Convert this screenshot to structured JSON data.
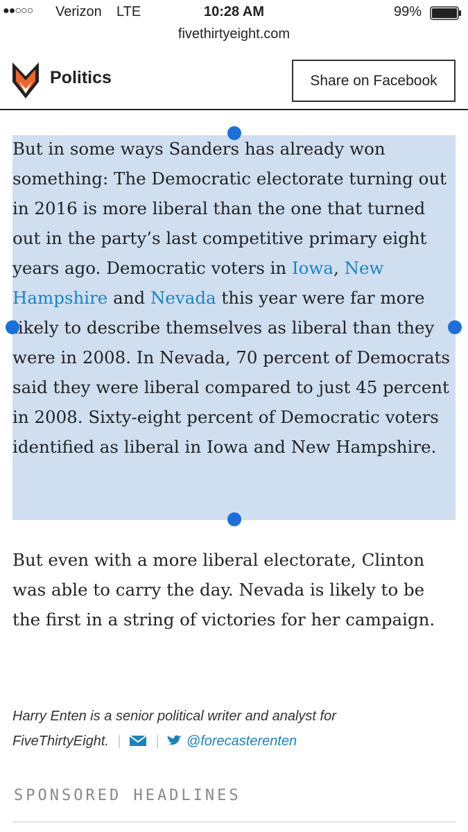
{
  "status_bar": {
    "carrier": "Verizon",
    "network": "LTE",
    "time": "10:28 AM",
    "battery": "99%"
  },
  "url": "fivethirtyeight.com",
  "header": {
    "section": "Politics",
    "share_button": "Share on Facebook"
  },
  "article": {
    "paragraphs": [
      {
        "parts": [
          {
            "text": "But in some ways Sanders has already won something: The Democratic electorate turning out in 2016 is more liberal than the one that turned out in the party’s last competitive primary eight years ago. Democratic voters in "
          },
          {
            "link": "Iowa"
          },
          {
            "text": ", "
          },
          {
            "link": "New Hampshire"
          },
          {
            "text": " and "
          },
          {
            "link": "Nevada"
          },
          {
            "text": " this year were far more likely to describe themselves as liberal than they were in 2008. In Nevada, 70 percent of Democrats said they were liberal compared to just 45 percent in 2008. Sixty-eight percent of Democratic voters identified as liberal in Iowa and New Hampshire."
          }
        ]
      },
      {
        "parts": [
          {
            "text": "But even with a more liberal electorate, Clinton was able to carry the day. Nevada is likely to be the first in a string of victories for her campaign."
          }
        ]
      }
    ]
  },
  "byline": {
    "bio": "Harry Enten is a senior political writer and analyst for FiveThirtyEight.",
    "twitter": "@forecasterenten"
  },
  "sponsored": "SPONSORED HEADLINES"
}
